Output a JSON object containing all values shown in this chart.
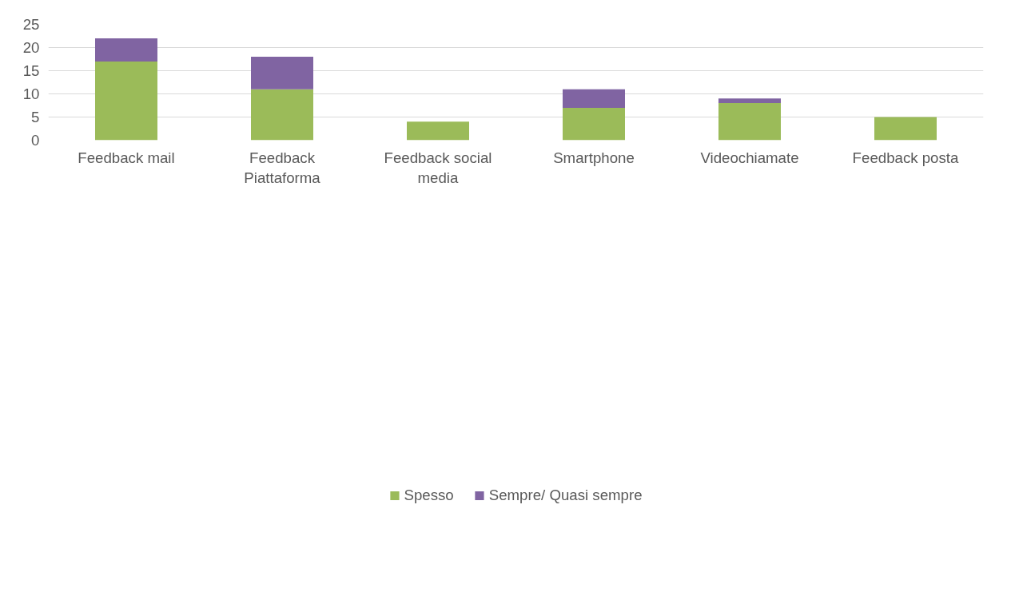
{
  "chart_data": {
    "type": "bar",
    "stacked": true,
    "categories": [
      "Feedback mail",
      "Feedback\nPiattaforma",
      "Feedback social\nmedia",
      "Smartphone",
      "Videochiamate",
      "Feedback posta"
    ],
    "series": [
      {
        "name": "Spesso",
        "color": "#9bbb59",
        "values": [
          17,
          11,
          4,
          7,
          8,
          5
        ]
      },
      {
        "name": "Sempre/ Quasi sempre",
        "color": "#8064a2",
        "values": [
          5,
          7,
          0,
          4,
          1,
          0
        ]
      }
    ],
    "ylim": [
      0,
      25
    ],
    "yticks": [
      0,
      5,
      10,
      15,
      20,
      25
    ],
    "grid": "y",
    "legend": "bottom"
  }
}
